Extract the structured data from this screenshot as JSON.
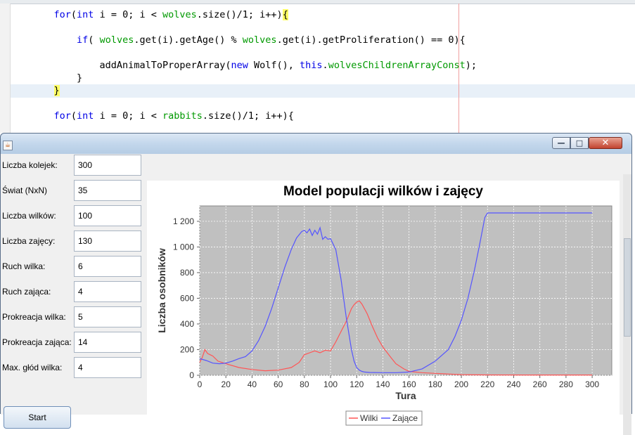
{
  "editor": {
    "lines": [
      {
        "indent": "    ",
        "parts": [
          [
            "kw",
            "for"
          ],
          [
            "",
            "("
          ],
          [
            "kw",
            "int"
          ],
          [
            "",
            " i = 0; i < "
          ],
          [
            "fld",
            "wolves"
          ],
          [
            "",
            ".size()/1; i++)"
          ],
          [
            "br",
            "{"
          ]
        ]
      },
      {
        "indent": "        ",
        "parts": [
          [
            "kw",
            "if"
          ],
          [
            "",
            "( "
          ],
          [
            "fld",
            "wolves"
          ],
          [
            "",
            ".get(i).getAge() % "
          ],
          [
            "fld",
            "wolves"
          ],
          [
            "",
            ".get(i).getProliferation() == 0){"
          ]
        ]
      },
      {
        "indent": "            ",
        "parts": [
          [
            "",
            "addAnimalToProperArray("
          ],
          [
            "kw",
            "new"
          ],
          [
            "",
            " Wolf(), "
          ],
          [
            "kw",
            "this"
          ],
          [
            "",
            "."
          ],
          [
            "fld",
            "wolvesChildrenArrayConst"
          ],
          [
            "",
            ");"
          ]
        ]
      },
      {
        "indent": "        ",
        "parts": [
          [
            "",
            "}"
          ]
        ]
      },
      {
        "indent": "    ",
        "parts": [
          [
            "br",
            "}"
          ]
        ]
      },
      {
        "indent": "    ",
        "parts": [
          [
            "kw",
            "for"
          ],
          [
            "",
            "("
          ],
          [
            "kw",
            "int"
          ],
          [
            "",
            " i = 0; i < "
          ],
          [
            "fld",
            "rabbits"
          ],
          [
            "",
            ".size()/1; i++){"
          ]
        ]
      }
    ]
  },
  "window": {
    "icon_glyph": "☕",
    "min_glyph": "—",
    "max_glyph": "□",
    "close_glyph": "✕"
  },
  "form": {
    "fields": [
      {
        "label": "Liczba kolejek:",
        "value": "300"
      },
      {
        "label": "Świat (NxN)",
        "value": "35"
      },
      {
        "label": "Liczba wilków:",
        "value": "100"
      },
      {
        "label": "Liczba zajęcy:",
        "value": "130"
      },
      {
        "label": "Ruch wilka:",
        "value": "6"
      },
      {
        "label": "Ruch zająca:",
        "value": "4"
      },
      {
        "label": "Prokreacja wilka:",
        "value": "5"
      },
      {
        "label": "Prokreacja zająca:",
        "value": "14"
      },
      {
        "label": "Max. głód wilka:",
        "value": "4"
      }
    ],
    "start_label": "Start"
  },
  "chart_data": {
    "type": "line",
    "title": "Model populacji wilków i zajęcy",
    "xlabel": "Tura",
    "ylabel": "Liczba osobników",
    "xlim": [
      0,
      315
    ],
    "ylim": [
      0,
      1320
    ],
    "xticks": [
      0,
      20,
      40,
      60,
      80,
      100,
      120,
      140,
      160,
      180,
      200,
      220,
      240,
      260,
      280,
      300
    ],
    "yticks": [
      0,
      200,
      400,
      600,
      800,
      1000,
      1200
    ],
    "ytick_labels": [
      "0",
      "200",
      "400",
      "600",
      "800",
      "1 000",
      "1 200"
    ],
    "grid": true,
    "legend": "bottom",
    "series": [
      {
        "name": "Wilki",
        "color": "#ff5555",
        "x": [
          0,
          2,
          4,
          6,
          8,
          10,
          14,
          20,
          30,
          40,
          50,
          60,
          70,
          76,
          80,
          84,
          88,
          92,
          96,
          100,
          104,
          108,
          112,
          116,
          118,
          120,
          122,
          124,
          128,
          132,
          136,
          140,
          146,
          150,
          156,
          160,
          170,
          180,
          190,
          200,
          220,
          250,
          300
        ],
        "y": [
          100,
          140,
          200,
          170,
          160,
          150,
          110,
          90,
          60,
          45,
          35,
          40,
          60,
          100,
          160,
          175,
          190,
          175,
          195,
          190,
          260,
          340,
          420,
          520,
          550,
          570,
          580,
          555,
          480,
          380,
          290,
          220,
          140,
          90,
          50,
          30,
          20,
          15,
          10,
          5,
          3,
          2,
          2
        ]
      },
      {
        "name": "Zające",
        "color": "#5555ff",
        "x": [
          0,
          5,
          10,
          15,
          20,
          25,
          30,
          35,
          40,
          45,
          50,
          55,
          60,
          65,
          70,
          74,
          78,
          80,
          82,
          84,
          86,
          88,
          90,
          92,
          94,
          96,
          98,
          100,
          104,
          108,
          112,
          116,
          118,
          120,
          122,
          124,
          126,
          130,
          140,
          150,
          160,
          170,
          180,
          190,
          195,
          200,
          205,
          210,
          214,
          218,
          220,
          240,
          260,
          280,
          300
        ],
        "y": [
          130,
          115,
          95,
          90,
          95,
          110,
          130,
          145,
          190,
          270,
          380,
          520,
          680,
          840,
          980,
          1070,
          1120,
          1130,
          1110,
          1140,
          1090,
          1130,
          1100,
          1150,
          1060,
          1080,
          1060,
          1065,
          980,
          750,
          450,
          200,
          110,
          60,
          40,
          30,
          25,
          22,
          20,
          20,
          25,
          50,
          110,
          200,
          300,
          430,
          600,
          820,
          1020,
          1230,
          1265,
          1265,
          1265,
          1265,
          1265
        ]
      }
    ]
  }
}
